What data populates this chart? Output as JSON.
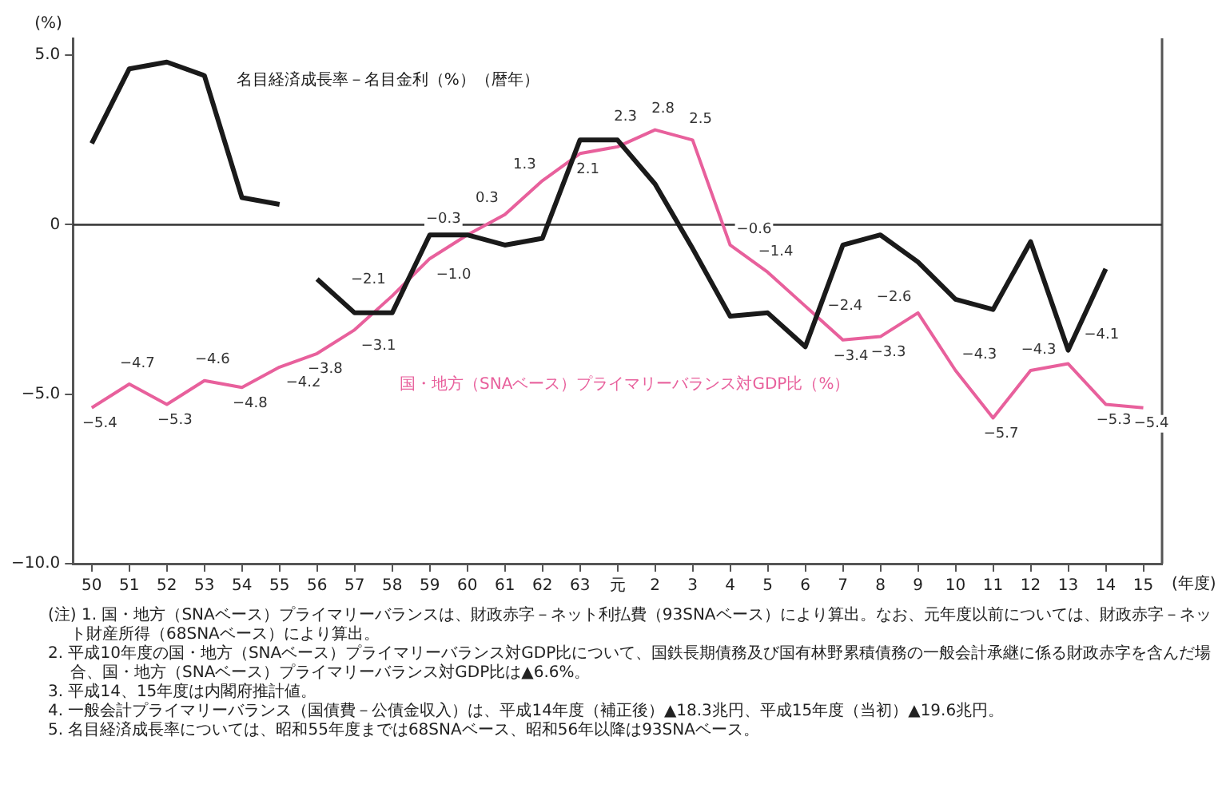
{
  "chart_data": {
    "type": "line",
    "categories": [
      "50",
      "51",
      "52",
      "53",
      "54",
      "55",
      "56",
      "57",
      "58",
      "59",
      "60",
      "61",
      "62",
      "63",
      "元",
      "2",
      "3",
      "4",
      "5",
      "6",
      "7",
      "8",
      "9",
      "10",
      "11",
      "12",
      "13",
      "14",
      "15"
    ],
    "series": [
      {
        "name": "名目経済成長率－名目金利（%）（暦年）",
        "color": "#1a1a1a",
        "values": [
          2.4,
          4.6,
          4.8,
          4.4,
          0.8,
          0.6,
          null,
          null,
          null,
          null,
          null,
          null,
          null,
          null,
          null,
          null,
          null,
          null,
          null,
          null,
          null,
          null,
          null,
          null,
          null,
          null,
          null,
          null,
          null
        ]
      },
      {
        "color": "#1a1a1a",
        "values": [
          null,
          null,
          null,
          null,
          null,
          null,
          -1.6,
          -2.6,
          -2.6,
          -0.3,
          -0.3,
          -0.6,
          -0.4,
          2.5,
          2.5,
          1.2,
          -0.7,
          -2.7,
          -2.6,
          -3.6,
          -0.6,
          -0.3,
          -1.1,
          -2.2,
          -2.5,
          -0.5,
          -3.7,
          -1.3,
          null
        ]
      },
      {
        "name": "国・地方（SNAベース）プライマリーバランス対GDP比（%）",
        "color": "#e8609c",
        "values": [
          -5.4,
          -4.7,
          -5.3,
          -4.6,
          -4.8,
          -4.2,
          -3.8,
          -3.1,
          -2.1,
          -1.0,
          -0.3,
          0.3,
          1.3,
          2.1,
          2.3,
          2.8,
          2.5,
          -0.6,
          -1.4,
          -2.4,
          -3.4,
          -3.3,
          -2.6,
          -4.3,
          -5.7,
          -4.3,
          -4.1,
          -5.3,
          -5.4
        ],
        "value_labels": [
          "−5.4",
          "−4.7",
          "−5.3",
          "−4.6",
          "−4.8",
          "−4.2",
          "−3.8",
          "−3.1",
          "−2.1",
          "−1.0",
          "−0.3",
          "0.3",
          "1.3",
          "2.1",
          "2.3",
          "2.8",
          "2.5",
          "−0.6",
          "−1.4",
          "−2.4",
          "−3.4",
          "−3.3",
          "−2.6",
          "−4.3",
          "−5.7",
          "−4.3",
          "−4.1",
          "−5.3",
          "−5.4"
        ]
      }
    ],
    "ylim": [
      -10,
      5.5
    ],
    "yticks": [
      {
        "value": 5,
        "label": "5.0"
      },
      0,
      {
        "value": -5,
        "label": "−5.0"
      },
      {
        "value": -10,
        "label": "−10.0"
      }
    ],
    "ylabel": "(%)",
    "xlabel": "(年度)",
    "ref_lines": [
      {
        "axis": "y",
        "value": 0,
        "color": "#333333"
      }
    ],
    "legend": false,
    "grid": false,
    "marker": "none",
    "line_style": "solid",
    "annotations": [
      "(注) 1. 国・地方（SNAベース）プライマリーバランスは、財政赤字－ネット利払費（93SNAベース）により算出。なお、元年度以前については、財政赤字－ネット財産所得（68SNAベース）により算出。",
      "2. 平成10年度の国・地方（SNAベース）プライマリーバランス対GDP比について、国鉄長期債務及び国有林野累積債務の一般会計承継に係る財政赤字を含んだ場合、国・地方（SNAベース）プライマリーバランス対GDP比は▲6.6%。",
      "3. 平成14、15年度は内閣府推計値。",
      "4. 一般会計プライマリーバランス（国債費－公債金収入）は、平成14年度（補正後）▲18.3兆円、平成15年度（当初）▲19.6兆円。",
      "5. 名目経済成長率については、昭和55年度までは68SNAベース、昭和56年以降は93SNAベース。"
    ]
  }
}
